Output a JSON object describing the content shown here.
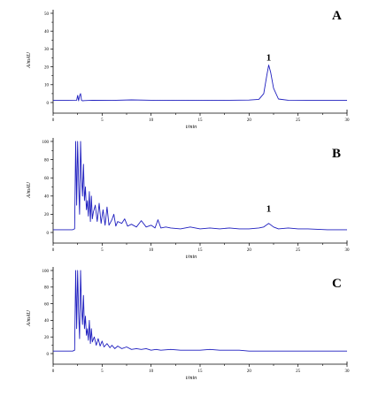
{
  "colors": {
    "trace": "#1f1fbf",
    "axis": "#000000"
  },
  "chart_data": [
    {
      "type": "line",
      "panel_label": "A",
      "xlabel": "t/min",
      "ylabel": "A/mAU",
      "xlim": [
        0,
        30
      ],
      "ylim": [
        0,
        50
      ],
      "x_ticks": [
        "0",
        "5",
        "10",
        "15",
        "20",
        "25",
        "30"
      ],
      "y_ticks": [
        "0",
        "10",
        "20",
        "30",
        "40",
        "50"
      ],
      "grid": false,
      "annotations": [
        {
          "text": "1",
          "x": 22.0,
          "y": 22.5
        }
      ],
      "series": [
        {
          "x": [
            0,
            1.5,
            2.4,
            2.5,
            2.6,
            2.7,
            2.8,
            2.9,
            3.0,
            3.2,
            4.0,
            6.0,
            8.0,
            10.0,
            12.0,
            14.0,
            16.0,
            18.0,
            20.0,
            21.0,
            21.5,
            21.8,
            22.0,
            22.2,
            22.5,
            23.0,
            24.0,
            26.0,
            28.0,
            30.0
          ],
          "y": [
            1.2,
            1.2,
            1.3,
            4.0,
            1.0,
            3.8,
            5.0,
            1.2,
            1.0,
            1.1,
            1.3,
            1.2,
            1.5,
            1.3,
            1.2,
            1.3,
            1.2,
            1.3,
            1.4,
            1.8,
            5.0,
            15.0,
            21.0,
            17.0,
            8.0,
            2.0,
            1.3,
            1.2,
            1.2,
            1.2
          ]
        }
      ]
    },
    {
      "type": "line",
      "panel_label": "B",
      "xlabel": "t/min",
      "ylabel": "A/mAU",
      "xlim": [
        0,
        30
      ],
      "ylim": [
        0,
        100
      ],
      "x_ticks": [
        "0",
        "5",
        "10",
        "15",
        "20",
        "25",
        "30"
      ],
      "y_ticks": [
        "0",
        "20",
        "40",
        "60",
        "80",
        "100"
      ],
      "grid": false,
      "annotations": [
        {
          "text": "1",
          "x": 22.0,
          "y": 21
        }
      ],
      "series": [
        {
          "x": [
            0,
            2.0,
            2.2,
            2.3,
            2.4,
            2.5,
            2.6,
            2.7,
            2.8,
            2.9,
            3.0,
            3.1,
            3.2,
            3.3,
            3.4,
            3.5,
            3.6,
            3.7,
            3.8,
            3.9,
            4.0,
            4.1,
            4.3,
            4.5,
            4.7,
            4.9,
            5.1,
            5.3,
            5.5,
            5.7,
            6.0,
            6.2,
            6.4,
            6.6,
            7.0,
            7.3,
            7.6,
            8.0,
            8.5,
            9.0,
            9.5,
            10.0,
            10.4,
            10.7,
            11.0,
            11.5,
            12.0,
            13.0,
            14.0,
            15.0,
            16.0,
            17.0,
            18.0,
            19.0,
            20.0,
            21.0,
            21.5,
            22.0,
            22.5,
            23.0,
            24.0,
            25.0,
            26.0,
            28.0,
            30.0
          ],
          "y": [
            3,
            3,
            4,
            100,
            30,
            100,
            55,
            20,
            100,
            60,
            40,
            75,
            35,
            50,
            25,
            35,
            18,
            45,
            12,
            40,
            15,
            22,
            30,
            12,
            32,
            10,
            25,
            8,
            28,
            8,
            14,
            20,
            7,
            12,
            10,
            15,
            7,
            9,
            6,
            13,
            6,
            8,
            5,
            14,
            5,
            6,
            5,
            4,
            6,
            4,
            5,
            4,
            5,
            4,
            4,
            5,
            6,
            10,
            6,
            4,
            5,
            4,
            4,
            3,
            3
          ]
        }
      ]
    },
    {
      "type": "line",
      "panel_label": "C",
      "xlabel": "t/min",
      "ylabel": "A/mAU",
      "xlim": [
        0,
        30
      ],
      "ylim": [
        0,
        100
      ],
      "x_ticks": [
        "0",
        "5",
        "10",
        "15",
        "20",
        "25",
        "30"
      ],
      "y_ticks": [
        "0",
        "20",
        "40",
        "60",
        "80",
        "100"
      ],
      "grid": false,
      "annotations": [],
      "series": [
        {
          "x": [
            0,
            2.0,
            2.2,
            2.3,
            2.4,
            2.5,
            2.6,
            2.7,
            2.8,
            2.9,
            3.0,
            3.1,
            3.2,
            3.3,
            3.4,
            3.5,
            3.6,
            3.7,
            3.8,
            3.9,
            4.0,
            4.2,
            4.4,
            4.6,
            4.8,
            5.0,
            5.2,
            5.5,
            5.8,
            6.0,
            6.3,
            6.6,
            7.0,
            7.5,
            8.0,
            8.5,
            9.0,
            9.5,
            10.0,
            10.5,
            11.0,
            12.0,
            13.0,
            14.0,
            15.0,
            16.0,
            17.0,
            18.0,
            19.0,
            20.0,
            22.0,
            24.0,
            26.0,
            28.0,
            30.0
          ],
          "y": [
            3,
            3,
            4,
            100,
            30,
            100,
            50,
            18,
            100,
            55,
            35,
            70,
            30,
            45,
            22,
            30,
            16,
            40,
            12,
            30,
            14,
            20,
            10,
            18,
            9,
            15,
            8,
            12,
            7,
            10,
            6,
            9,
            6,
            8,
            5,
            6,
            5,
            6,
            4,
            5,
            4,
            5,
            4,
            4,
            4,
            5,
            4,
            4,
            4,
            3,
            3,
            3,
            3,
            3,
            3
          ]
        }
      ]
    }
  ]
}
